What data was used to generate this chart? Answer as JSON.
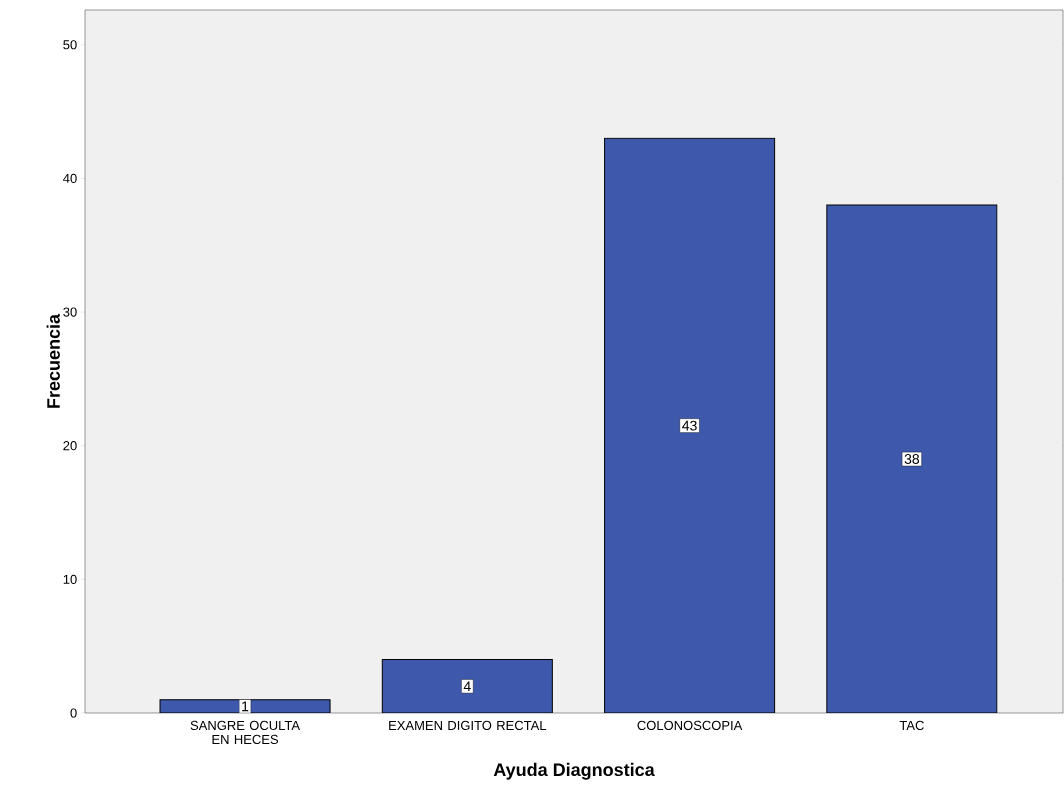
{
  "chart_data": {
    "type": "bar",
    "xlabel": "Ayuda Diagnostica",
    "ylabel": "Frecuencia",
    "categories": [
      "SANGRE OCULTA EN HECES",
      "EXAMEN DIGITO RECTAL",
      "COLONOSCOPIA",
      "TAC"
    ],
    "values": [
      1,
      4,
      43,
      38
    ],
    "color": "#3e58ac",
    "ylim": [
      0,
      52.6
    ],
    "yticks": [
      0,
      10,
      20,
      30,
      40,
      50
    ],
    "data_labels": true
  }
}
